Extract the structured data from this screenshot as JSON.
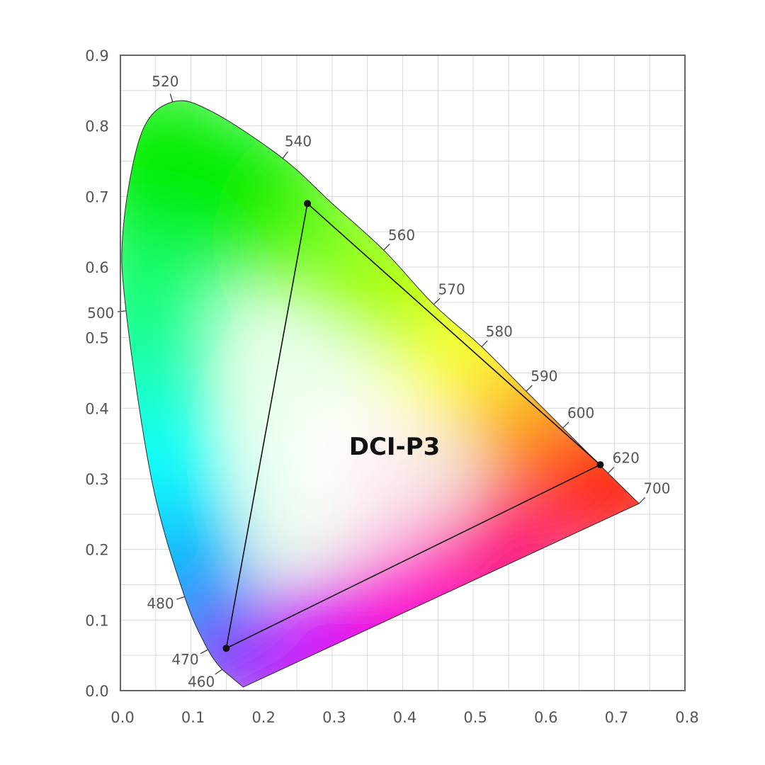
{
  "chart_data": {
    "type": "scatter",
    "title": "",
    "xlabel": "",
    "ylabel": "",
    "xlim": [
      0,
      0.8
    ],
    "ylim": [
      0,
      0.9
    ],
    "grid": true,
    "x_ticks": [
      "0.0",
      "0.1",
      "0.2",
      "0.3",
      "0.4",
      "0.5",
      "0.6",
      "0.7",
      "0.8"
    ],
    "y_ticks": [
      "0.0",
      "0.1",
      "0.2",
      "0.3",
      "0.4",
      "0.5",
      "0.6",
      "0.7",
      "0.8",
      "0.9"
    ],
    "spectral_locus": {
      "points": [
        {
          "wl": "460",
          "x": 0.144,
          "y": 0.03
        },
        {
          "wl": "470",
          "x": 0.124,
          "y": 0.058
        },
        {
          "wl": "480",
          "x": 0.091,
          "y": 0.133
        },
        {
          "wl": "",
          "x": 0.045,
          "y": 0.295
        },
        {
          "wl": "500",
          "x": 0.008,
          "y": 0.538
        },
        {
          "wl": "",
          "x": 0.004,
          "y": 0.655
        },
        {
          "wl": "",
          "x": 0.03,
          "y": 0.79
        },
        {
          "wl": "520",
          "x": 0.074,
          "y": 0.834
        },
        {
          "wl": "",
          "x": 0.13,
          "y": 0.82
        },
        {
          "wl": "540",
          "x": 0.23,
          "y": 0.754
        },
        {
          "wl": "",
          "x": 0.3,
          "y": 0.69
        },
        {
          "wl": "560",
          "x": 0.373,
          "y": 0.624
        },
        {
          "wl": "570",
          "x": 0.444,
          "y": 0.547
        },
        {
          "wl": "580",
          "x": 0.512,
          "y": 0.487
        },
        {
          "wl": "590",
          "x": 0.575,
          "y": 0.424
        },
        {
          "wl": "600",
          "x": 0.627,
          "y": 0.372
        },
        {
          "wl": "620",
          "x": 0.691,
          "y": 0.308
        },
        {
          "wl": "700",
          "x": 0.735,
          "y": 0.265
        }
      ],
      "purple_line_end": {
        "x": 0.174,
        "y": 0.005
      }
    },
    "gamut": {
      "name": "DCI-P3",
      "label": "DCI-P3",
      "primaries": [
        {
          "x": 0.68,
          "y": 0.32
        },
        {
          "x": 0.265,
          "y": 0.69
        },
        {
          "x": 0.15,
          "y": 0.06
        }
      ]
    },
    "colors": {
      "red": "#ff0000",
      "green": "#00ee00",
      "blue": "#0000ff",
      "cyan": "#00ffff",
      "yellow": "#ffff00",
      "magenta": "#ff00cc",
      "purple": "#7700ff",
      "white": "#ffffff",
      "grid": "#d9d9d9",
      "axis": "#666666",
      "triangle": "#111111"
    }
  }
}
